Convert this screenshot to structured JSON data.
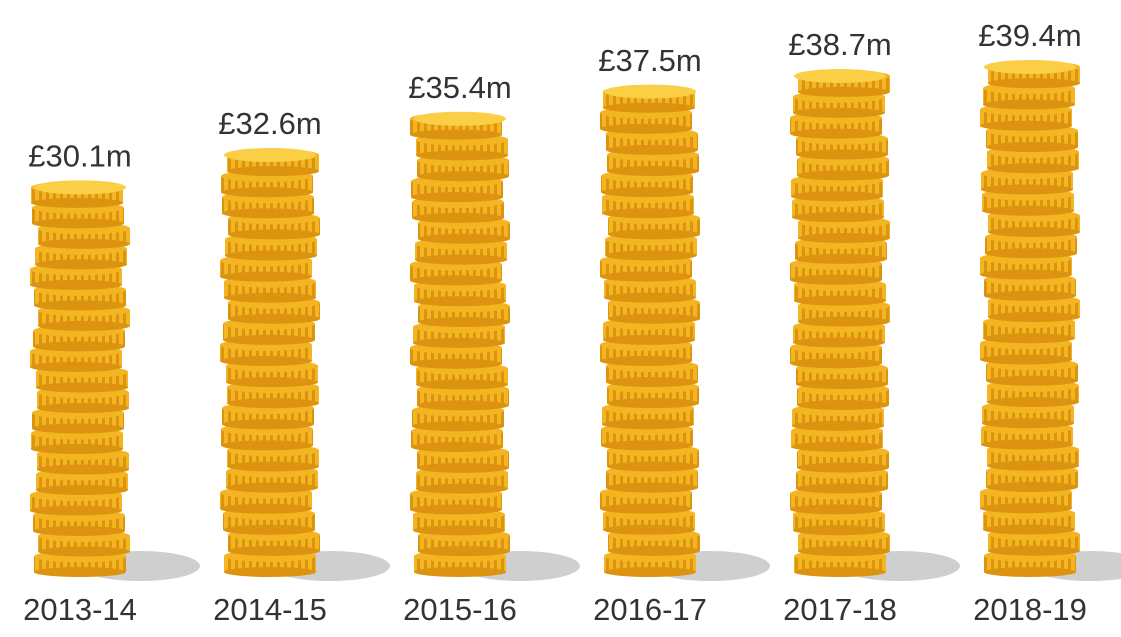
{
  "chart_data": {
    "type": "bar",
    "categories": [
      "2013-14",
      "2014-15",
      "2015-16",
      "2016-17",
      "2017-18",
      "2018-19"
    ],
    "values": [
      30.1,
      32.6,
      35.4,
      37.5,
      38.7,
      39.4
    ],
    "value_labels": [
      "£30.1m",
      "£32.6m",
      "£35.4m",
      "£37.5m",
      "£38.7m",
      "£39.4m"
    ],
    "color": "#f4b522"
  }
}
